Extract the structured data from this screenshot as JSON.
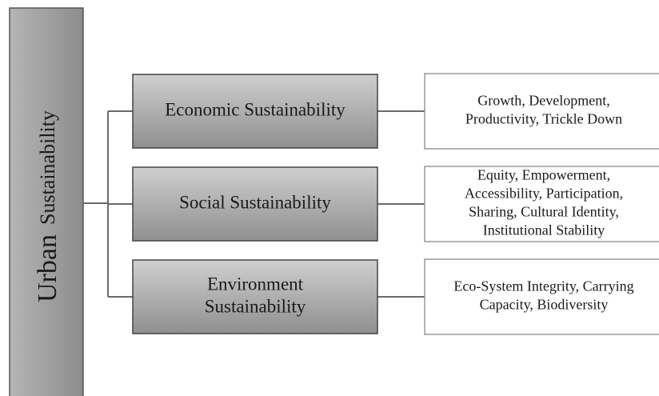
{
  "root": {
    "words": [
      "Urban",
      "Sustainability"
    ]
  },
  "branches": [
    {
      "label": [
        "Economic Sustainability"
      ],
      "description": [
        "Growth, Development,",
        "Productivity, Trickle Down"
      ]
    },
    {
      "label": [
        "Social Sustainability"
      ],
      "description": [
        "Equity, Empowerment,",
        "Accessibility, Participation,",
        "Sharing, Cultural Identity,",
        "Institutional Stability"
      ]
    },
    {
      "label": [
        "Environment",
        "Sustainability"
      ],
      "description": [
        "Eco-System Integrity, Carrying",
        "Capacity, Biodiversity"
      ]
    }
  ]
}
